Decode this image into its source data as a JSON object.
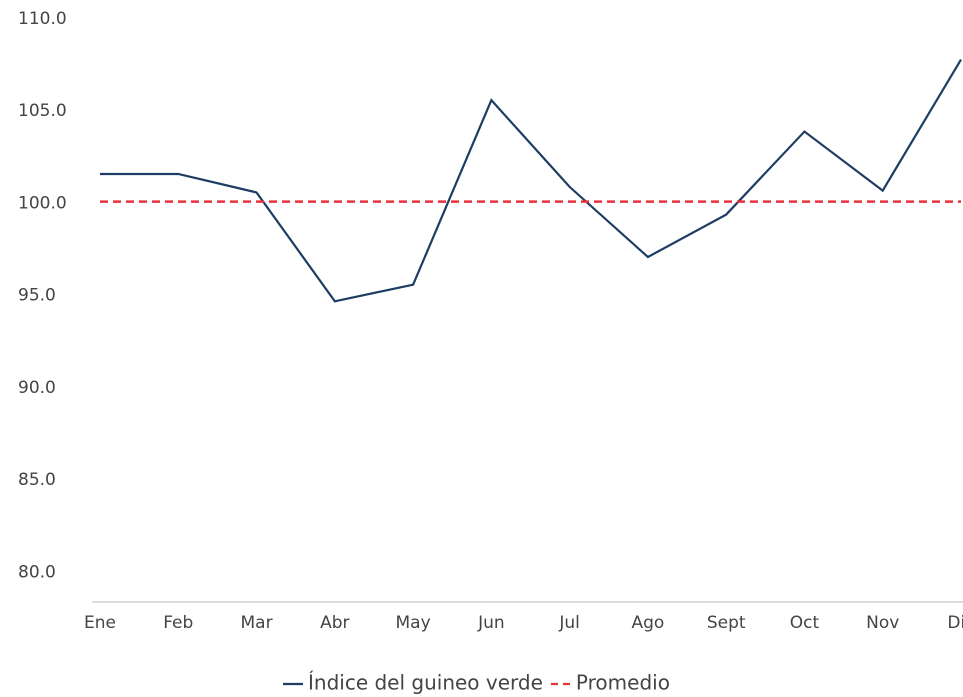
{
  "chart_data": {
    "type": "line",
    "categories": [
      "Ene",
      "Feb",
      "Mar",
      "Abr",
      "May",
      "Jun",
      "Jul",
      "Ago",
      "Sept",
      "Oct",
      "Nov",
      "Dic"
    ],
    "series": [
      {
        "name": "Índice del guineo verde",
        "color": "#1d3d63",
        "values": [
          101.6,
          101.6,
          100.6,
          94.7,
          95.6,
          105.6,
          100.9,
          97.1,
          99.4,
          103.9,
          100.7,
          107.8
        ]
      },
      {
        "name": "Promedio",
        "color": "#e8323c",
        "dashed": true,
        "values": [
          100.1,
          100.1,
          100.1,
          100.1,
          100.1,
          100.1,
          100.1,
          100.1,
          100.1,
          100.1,
          100.1,
          100.1
        ]
      }
    ],
    "ylim": [
      78.4,
      110.0
    ],
    "yticks": [
      {
        "value": 80,
        "label": "80.0"
      },
      {
        "value": 85,
        "label": "85.0"
      },
      {
        "value": 90,
        "label": "90.0"
      },
      {
        "value": 95,
        "label": "95.0"
      },
      {
        "value": 100,
        "label": "100.0"
      },
      {
        "value": 105,
        "label": "105.0"
      },
      {
        "value": 110,
        "label": "110.0"
      }
    ],
    "grid": false,
    "legend": "bottom"
  }
}
